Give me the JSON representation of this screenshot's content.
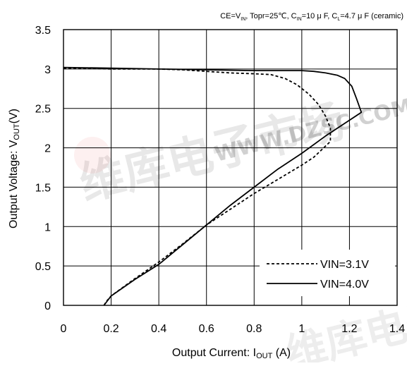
{
  "chart_data": {
    "type": "line",
    "conditions": {
      "prefix": "CE=V",
      "vin_sub": "IN",
      "temp": ", Topr=25℃, C",
      "cin_sub": "IN",
      "cin_val": "=10 μ F, C",
      "cl_sub": "L",
      "cl_val": "=4.7 μ F (ceramic)"
    },
    "xlabel": {
      "main": "Output Current: I",
      "sub": "OUT",
      "unit": " (A)"
    },
    "ylabel": {
      "main": "Output Voltage: V",
      "sub": "OUT",
      "unit": "(V)"
    },
    "xlim": [
      0,
      1.4
    ],
    "ylim": [
      0,
      3.5
    ],
    "x_ticks": [
      0,
      0.2,
      0.4,
      0.6,
      0.8,
      1,
      1.2,
      1.4
    ],
    "x_tick_labels": [
      "0",
      "0.2",
      "0.4",
      "0.6",
      "0.8",
      "1",
      "1.2",
      "1.4"
    ],
    "y_ticks": [
      0,
      0.5,
      1,
      1.5,
      2,
      2.5,
      3,
      3.5
    ],
    "y_tick_labels": [
      "0",
      "0.5",
      "1",
      "1.5",
      "2",
      "2.5",
      "3",
      "3.5"
    ],
    "grid": "vertical-and-horizontal",
    "legend_position": "bottom-right",
    "series": [
      {
        "name": "VIN=3.1V",
        "style": "dashed",
        "color": "#000000",
        "points": [
          [
            0,
            3.01
          ],
          [
            0.1,
            3.01
          ],
          [
            0.2,
            3.0
          ],
          [
            0.3,
            3.0
          ],
          [
            0.4,
            3.0
          ],
          [
            0.5,
            2.99
          ],
          [
            0.6,
            2.97
          ],
          [
            0.7,
            2.95
          ],
          [
            0.8,
            2.94
          ],
          [
            0.87,
            2.93
          ],
          [
            0.93,
            2.88
          ],
          [
            0.98,
            2.8
          ],
          [
            1.03,
            2.68
          ],
          [
            1.07,
            2.55
          ],
          [
            1.1,
            2.4
          ],
          [
            1.12,
            2.25
          ],
          [
            1.12,
            2.08
          ],
          [
            1.05,
            1.88
          ],
          [
            1.0,
            1.78
          ],
          [
            0.9,
            1.6
          ],
          [
            0.8,
            1.42
          ],
          [
            0.7,
            1.22
          ],
          [
            0.6,
            1.02
          ],
          [
            0.5,
            0.78
          ],
          [
            0.4,
            0.55
          ],
          [
            0.3,
            0.34
          ],
          [
            0.2,
            0.12
          ],
          [
            0.18,
            0.05
          ],
          [
            0.17,
            0
          ]
        ]
      },
      {
        "name": "VIN=4.0V",
        "style": "solid",
        "color": "#000000",
        "points": [
          [
            0,
            3.02
          ],
          [
            0.2,
            3.01
          ],
          [
            0.4,
            3.0
          ],
          [
            0.6,
            2.99
          ],
          [
            0.8,
            2.98
          ],
          [
            1.0,
            2.98
          ],
          [
            1.05,
            2.97
          ],
          [
            1.1,
            2.95
          ],
          [
            1.15,
            2.92
          ],
          [
            1.18,
            2.88
          ],
          [
            1.21,
            2.78
          ],
          [
            1.23,
            2.62
          ],
          [
            1.25,
            2.45
          ],
          [
            1.2,
            2.35
          ],
          [
            1.1,
            2.15
          ],
          [
            1.0,
            1.93
          ],
          [
            0.9,
            1.73
          ],
          [
            0.8,
            1.5
          ],
          [
            0.7,
            1.27
          ],
          [
            0.6,
            1.02
          ],
          [
            0.5,
            0.77
          ],
          [
            0.4,
            0.52
          ],
          [
            0.3,
            0.33
          ],
          [
            0.2,
            0.12
          ],
          [
            0.17,
            0
          ]
        ]
      }
    ]
  },
  "watermark": {
    "line1": "维库电子市场",
    "line2": "WWW.DZSC.COM",
    "color": "#e04040"
  }
}
